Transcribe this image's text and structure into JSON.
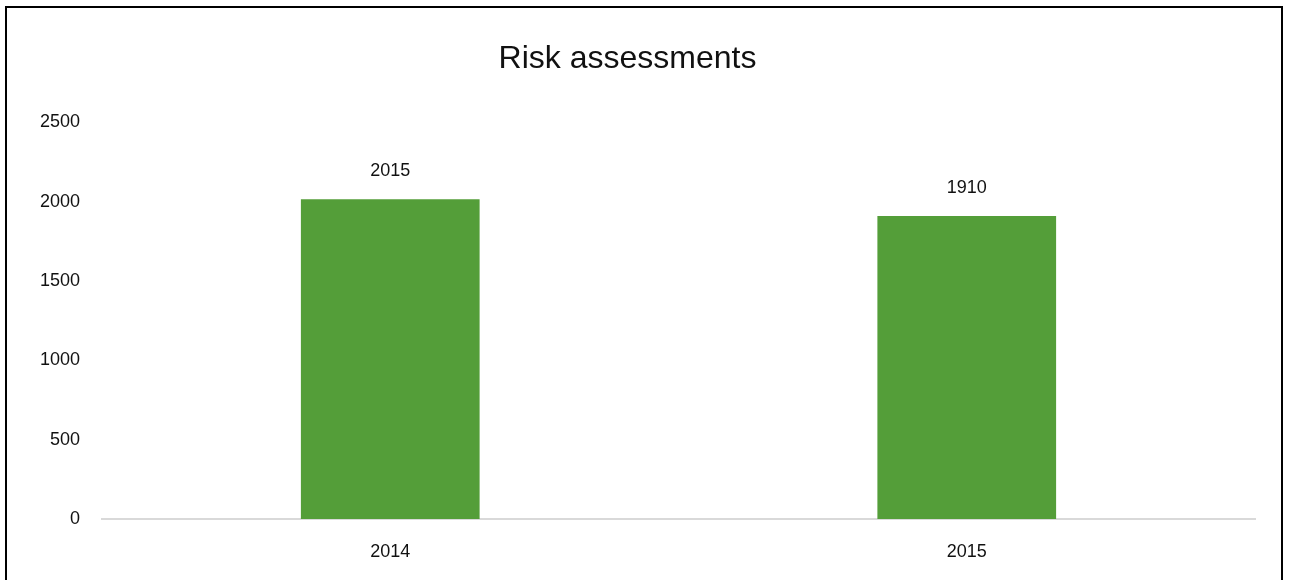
{
  "chart_data": {
    "type": "bar",
    "title": "Risk assessments",
    "categories": [
      "2014",
      "2015"
    ],
    "values": [
      2015,
      1910
    ],
    "color": "#549e39",
    "ylim": [
      0,
      2500
    ],
    "yticks": [
      0,
      500,
      1000,
      1500,
      2000,
      2500
    ],
    "data_labels": true
  }
}
